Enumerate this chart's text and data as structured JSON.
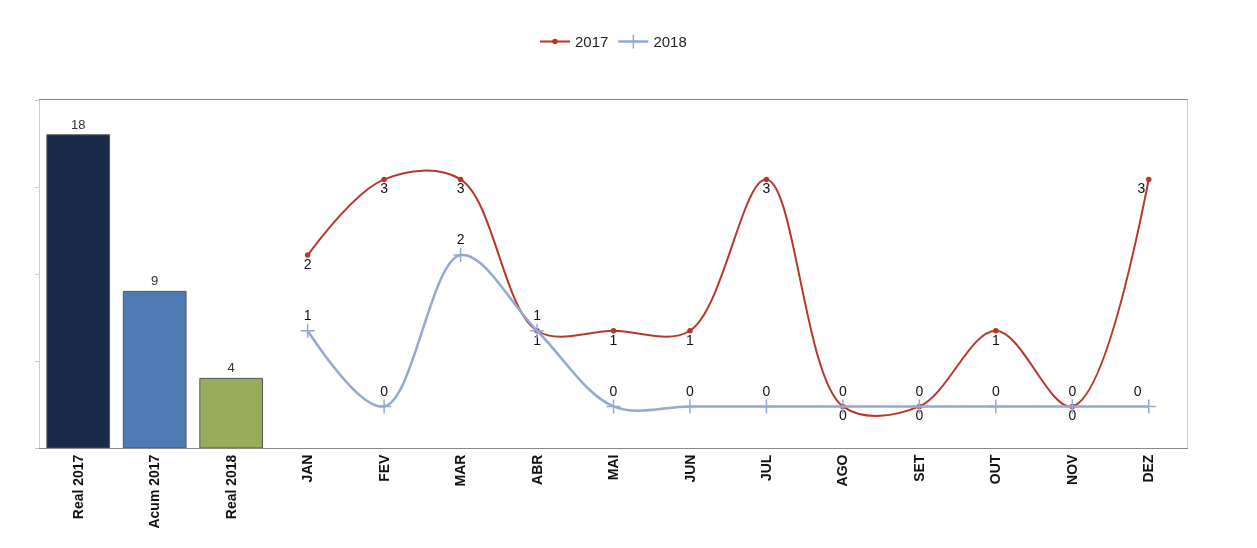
{
  "chart_data": {
    "type": "bar",
    "categories": [
      "Real 2017",
      "Acum 2017",
      "Real 2018",
      "JAN",
      "FEV",
      "MAR",
      "ABR",
      "MAI",
      "JUN",
      "JUL",
      "AGO",
      "SET",
      "OUT",
      "NOV",
      "DEZ"
    ],
    "series": [
      {
        "colors": [
          "#172a48",
          "#4f7bb5",
          "#97ad59",
          null,
          null,
          null,
          null,
          null,
          null,
          null,
          null,
          null,
          null,
          null,
          null
        ],
        "values": [
          18,
          9,
          4,
          null,
          null,
          null,
          null,
          null,
          null,
          null,
          null,
          null,
          null,
          null,
          null
        ]
      },
      {
        "type": "line",
        "name": "2017",
        "color": "#b8372b",
        "axis": "y2",
        "marker": "circle",
        "values": [
          null,
          null,
          null,
          2,
          3,
          3,
          1,
          1,
          1,
          3,
          0,
          0,
          1,
          0,
          3
        ]
      },
      {
        "type": "line",
        "name": "2018",
        "color": "#93a8d2",
        "axis": "y2",
        "marker": "cross",
        "values": [
          null,
          null,
          null,
          1,
          0,
          2,
          1,
          0,
          0,
          0,
          0,
          0,
          0,
          0,
          0
        ]
      }
    ],
    "ylim": [
      0,
      20
    ],
    "y2lim": [
      -0.55,
      4.05
    ],
    "tick_labels": "x",
    "data_labels": true,
    "legend": "top"
  }
}
